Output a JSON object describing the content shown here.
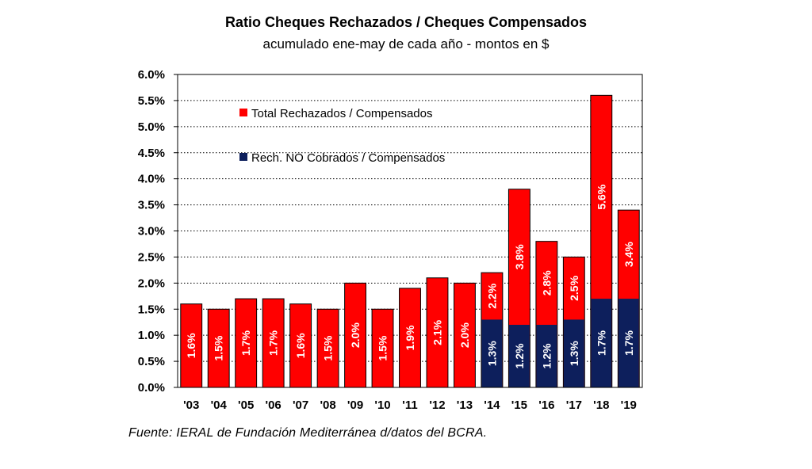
{
  "header": {
    "title": "Ratio Cheques Rechazados / Cheques Compensados",
    "subtitle": "acumulado ene-may de cada año - montos en $"
  },
  "footer": {
    "source": "Fuente: IERAL de Fundación Mediterránea d/datos del BCRA."
  },
  "chart_data": {
    "type": "bar",
    "stacked": false,
    "overlay": true,
    "categories": [
      "'03",
      "'04",
      "'05",
      "'06",
      "'07",
      "'08",
      "'09",
      "'10",
      "'11",
      "'12",
      "'13",
      "'14",
      "'15",
      "'16",
      "'17",
      "'18",
      "'19"
    ],
    "series": [
      {
        "name": "Total Rechazados / Compensados",
        "color": "#ff0000",
        "values": [
          1.6,
          1.5,
          1.7,
          1.7,
          1.6,
          1.5,
          2.0,
          1.5,
          1.9,
          2.1,
          2.0,
          2.2,
          3.8,
          2.8,
          2.5,
          5.6,
          3.4
        ],
        "labels": [
          "1.6%",
          "1.5%",
          "1.7%",
          "1.7%",
          "1.6%",
          "1.5%",
          "2.0%",
          "1.5%",
          "1.9%",
          "2.1%",
          "2.0%",
          "2.2%",
          "3.8%",
          "2.8%",
          "2.5%",
          "5.6%",
          "3.4%"
        ]
      },
      {
        "name": "Rech. NO Cobrados / Compensados",
        "color": "#0d1f5c",
        "values": [
          null,
          null,
          null,
          null,
          null,
          null,
          null,
          null,
          null,
          null,
          null,
          1.3,
          1.2,
          1.2,
          1.3,
          1.7,
          1.7
        ],
        "labels": [
          "",
          "",
          "",
          "",
          "",
          "",
          "",
          "",
          "",
          "",
          "",
          "1.3%",
          "1.2%",
          "1.2%",
          "1.3%",
          "1.7%",
          "1.7%"
        ]
      }
    ],
    "ylim": [
      0,
      6
    ],
    "yticks": [
      "0.0%",
      "0.5%",
      "1.0%",
      "1.5%",
      "2.0%",
      "2.5%",
      "3.0%",
      "3.5%",
      "4.0%",
      "4.5%",
      "5.0%",
      "5.5%",
      "6.0%"
    ],
    "grid": true,
    "legend_position": "top-left inside plot",
    "xlabel": "",
    "ylabel": ""
  }
}
